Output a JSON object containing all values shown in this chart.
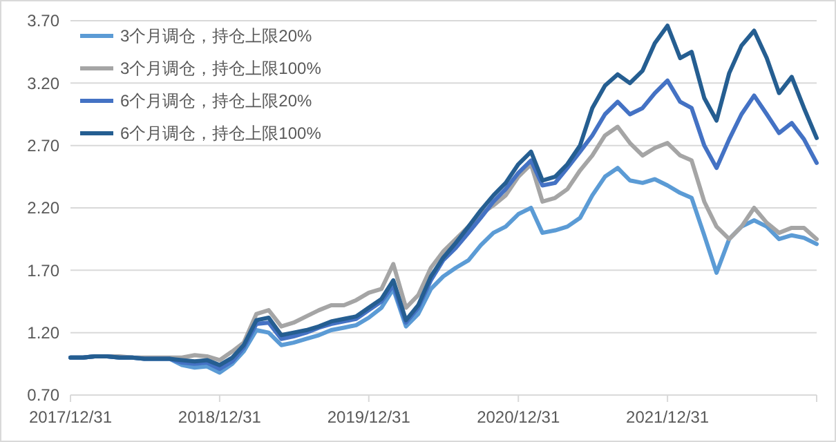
{
  "chart_data": {
    "type": "line",
    "x": [
      "2017-12-31",
      "2018-01-31",
      "2018-02-28",
      "2018-03-31",
      "2018-04-30",
      "2018-05-31",
      "2018-06-30",
      "2018-07-31",
      "2018-08-31",
      "2018-09-30",
      "2018-10-31",
      "2018-11-30",
      "2018-12-31",
      "2019-01-31",
      "2019-02-28",
      "2019-03-31",
      "2019-04-30",
      "2019-05-31",
      "2019-06-30",
      "2019-07-31",
      "2019-08-31",
      "2019-09-30",
      "2019-10-31",
      "2019-11-30",
      "2019-12-31",
      "2020-01-31",
      "2020-02-29",
      "2020-03-31",
      "2020-04-30",
      "2020-05-31",
      "2020-06-30",
      "2020-07-31",
      "2020-08-31",
      "2020-09-30",
      "2020-10-31",
      "2020-11-30",
      "2020-12-31",
      "2021-01-31",
      "2021-02-28",
      "2021-03-31",
      "2021-04-30",
      "2021-05-31",
      "2021-06-30",
      "2021-07-31",
      "2021-08-31",
      "2021-09-30",
      "2021-10-31",
      "2021-11-30",
      "2021-12-31",
      "2022-01-31",
      "2022-02-28",
      "2022-03-31",
      "2022-04-30",
      "2022-05-31",
      "2022-06-30",
      "2022-07-31",
      "2022-08-31",
      "2022-09-30",
      "2022-10-31",
      "2022-11-30",
      "2022-12-31"
    ],
    "series": [
      {
        "name": "3个月调仓，持仓上限20%",
        "color": "#5b9bd5",
        "values": [
          1.0,
          1.0,
          1.01,
          1.01,
          1.0,
          1.0,
          0.99,
          0.99,
          0.99,
          0.94,
          0.92,
          0.93,
          0.88,
          0.95,
          1.05,
          1.22,
          1.2,
          1.1,
          1.12,
          1.15,
          1.18,
          1.22,
          1.24,
          1.26,
          1.32,
          1.4,
          1.55,
          1.25,
          1.35,
          1.55,
          1.65,
          1.72,
          1.78,
          1.9,
          2.0,
          2.05,
          2.15,
          2.2,
          2.0,
          2.02,
          2.05,
          2.12,
          2.3,
          2.45,
          2.52,
          2.42,
          2.4,
          2.43,
          2.38,
          2.32,
          2.28,
          1.98,
          1.68,
          1.95,
          2.05,
          2.1,
          2.05,
          1.95,
          1.98,
          1.96,
          1.91
        ]
      },
      {
        "name": "3个月调仓，持仓上限100%",
        "color": "#a5a5a5",
        "values": [
          1.0,
          1.0,
          1.01,
          1.01,
          1.01,
          1.0,
          1.0,
          1.0,
          1.0,
          1.0,
          1.02,
          1.01,
          0.98,
          1.05,
          1.12,
          1.35,
          1.38,
          1.25,
          1.28,
          1.33,
          1.38,
          1.42,
          1.42,
          1.46,
          1.52,
          1.55,
          1.75,
          1.4,
          1.5,
          1.72,
          1.85,
          1.95,
          2.05,
          2.15,
          2.22,
          2.3,
          2.45,
          2.55,
          2.25,
          2.28,
          2.35,
          2.5,
          2.62,
          2.78,
          2.85,
          2.72,
          2.62,
          2.68,
          2.72,
          2.62,
          2.58,
          2.25,
          2.05,
          1.95,
          2.05,
          2.2,
          2.08,
          2.0,
          2.04,
          2.04,
          1.95
        ]
      },
      {
        "name": "6个月调仓，持仓上限20%",
        "color": "#4472c4",
        "values": [
          1.0,
          1.0,
          1.01,
          1.01,
          1.0,
          1.0,
          0.99,
          0.99,
          0.99,
          0.96,
          0.95,
          0.96,
          0.91,
          0.97,
          1.08,
          1.27,
          1.28,
          1.15,
          1.17,
          1.2,
          1.24,
          1.27,
          1.29,
          1.31,
          1.38,
          1.45,
          1.58,
          1.28,
          1.4,
          1.62,
          1.78,
          1.88,
          2.0,
          2.12,
          2.25,
          2.35,
          2.48,
          2.58,
          2.38,
          2.4,
          2.52,
          2.65,
          2.78,
          2.95,
          3.05,
          2.95,
          3.0,
          3.12,
          3.22,
          3.05,
          3.0,
          2.7,
          2.52,
          2.75,
          2.95,
          3.1,
          2.95,
          2.8,
          2.88,
          2.75,
          2.56
        ]
      },
      {
        "name": "6个月调仓，持仓上限100%",
        "color": "#255e91",
        "values": [
          1.0,
          1.0,
          1.01,
          1.01,
          1.0,
          1.0,
          0.99,
          0.99,
          0.99,
          0.98,
          0.97,
          0.98,
          0.94,
          1.0,
          1.1,
          1.3,
          1.32,
          1.18,
          1.2,
          1.22,
          1.25,
          1.29,
          1.31,
          1.33,
          1.4,
          1.47,
          1.62,
          1.3,
          1.42,
          1.65,
          1.8,
          1.92,
          2.05,
          2.18,
          2.3,
          2.4,
          2.55,
          2.65,
          2.42,
          2.45,
          2.55,
          2.7,
          3.0,
          3.18,
          3.27,
          3.2,
          3.3,
          3.52,
          3.66,
          3.4,
          3.45,
          3.08,
          2.9,
          3.28,
          3.5,
          3.62,
          3.4,
          3.12,
          3.25,
          3.0,
          2.76
        ]
      }
    ],
    "xlim": [
      "2017-12-31",
      "2022-12-31"
    ],
    "xticks": [
      {
        "value": "2017-12-31",
        "label": "2017/12/31"
      },
      {
        "value": "2018-12-31",
        "label": "2018/12/31"
      },
      {
        "value": "2019-12-31",
        "label": "2019/12/31"
      },
      {
        "value": "2020-12-31",
        "label": "2020/12/31"
      },
      {
        "value": "2021-12-31",
        "label": "2021/12/31"
      },
      {
        "value": "2022-12-31",
        "label": null
      }
    ],
    "ylim": [
      0.7,
      3.7
    ],
    "yticks": [
      {
        "value": 0.7,
        "label": "0.70"
      },
      {
        "value": 1.2,
        "label": "1.20"
      },
      {
        "value": 1.7,
        "label": "1.70"
      },
      {
        "value": 2.2,
        "label": "2.20"
      },
      {
        "value": 2.7,
        "label": "2.70"
      },
      {
        "value": 3.2,
        "label": "3.20"
      },
      {
        "value": 3.7,
        "label": "3.70"
      }
    ],
    "grid": "y",
    "legend": "top left",
    "marker": "none",
    "line_style": "solid"
  }
}
